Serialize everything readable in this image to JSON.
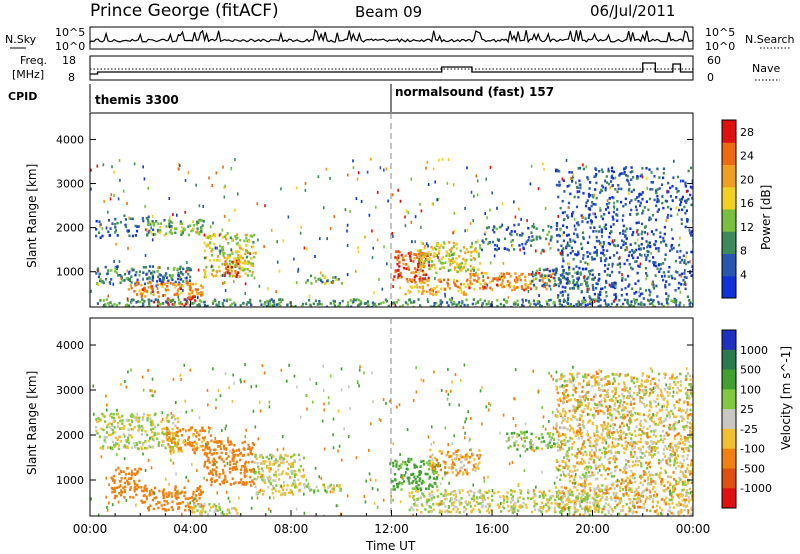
{
  "header": {
    "station": "Prince George (fitACF)",
    "beam": "Beam 09",
    "date": "06/Jul/2011"
  },
  "top_panels": {
    "nsky_label": "N.Sky",
    "nsearch_label": "N.Search",
    "freq_label_1": "Freq.",
    "freq_label_2": "[MHz]",
    "nave_label": "Nave",
    "cpid_label": "CPID",
    "noise_ticks_left": [
      "10^5",
      "10^0"
    ],
    "noise_ticks_right": [
      "10^5",
      "10^0"
    ],
    "freq_ticks": [
      "18",
      "8"
    ],
    "nave_ticks": [
      "60",
      "0"
    ]
  },
  "cpid_segments": [
    {
      "label": "themis 3300",
      "start_hour": 0
    },
    {
      "label": "normalsound (fast) 157",
      "start_hour": 12
    }
  ],
  "colors": {
    "power_scale": [
      "#1030d8",
      "#2a56b0",
      "#3c8a5a",
      "#7ac040",
      "#f0d020",
      "#f0a020",
      "#ec6a10",
      "#e01010"
    ],
    "velocity_scale": [
      "#2030c0",
      "#2a7a50",
      "#40a030",
      "#80c840",
      "#c8c8c0",
      "#f0c030",
      "#f08010",
      "#e05010",
      "#e01010"
    ]
  },
  "chart_data": [
    {
      "type": "heatmap",
      "name": "power",
      "xlabel": "",
      "ylabel": "Slant Range [km]",
      "xlim_hours": [
        0,
        24
      ],
      "ylim": [
        200,
        4600
      ],
      "yticks": [
        "1000",
        "2000",
        "3000",
        "4000"
      ],
      "colorbar_label": "Power [dB]",
      "colorbar_ticks": [
        "4",
        "8",
        "12",
        "16",
        "20",
        "24",
        "28"
      ],
      "colorbar_range": [
        0,
        30
      ],
      "regions": [
        {
          "h0": 0.2,
          "h1": 2.5,
          "r0": 1800,
          "r1": 2300,
          "val": 6
        },
        {
          "h0": 2.2,
          "h1": 4.5,
          "r0": 1850,
          "r1": 2200,
          "val": 12
        },
        {
          "h0": 4.5,
          "h1": 6.5,
          "r0": 900,
          "r1": 1900,
          "val": 16
        },
        {
          "h0": 5.3,
          "h1": 5.9,
          "r0": 900,
          "r1": 1300,
          "val": 26
        },
        {
          "h0": 0.2,
          "h1": 4.0,
          "r0": 750,
          "r1": 1150,
          "val": 8
        },
        {
          "h0": 1.5,
          "h1": 4.5,
          "r0": 450,
          "r1": 800,
          "val": 22
        },
        {
          "h0": 2.5,
          "h1": 4.2,
          "r0": 250,
          "r1": 450,
          "val": 28
        },
        {
          "h0": 8.5,
          "h1": 10.0,
          "r0": 750,
          "r1": 950,
          "val": 12
        },
        {
          "h0": 12.0,
          "h1": 13.5,
          "r0": 800,
          "r1": 1500,
          "val": 26
        },
        {
          "h0": 13.0,
          "h1": 15.5,
          "r0": 1000,
          "r1": 1700,
          "val": 16
        },
        {
          "h0": 12.5,
          "h1": 15.0,
          "r0": 500,
          "r1": 850,
          "val": 20
        },
        {
          "h0": 15.0,
          "h1": 18.5,
          "r0": 600,
          "r1": 1000,
          "val": 22
        },
        {
          "h0": 17.5,
          "h1": 20.0,
          "r0": 700,
          "r1": 1100,
          "val": 8
        },
        {
          "h0": 15.5,
          "h1": 18.5,
          "r0": 1500,
          "r1": 2100,
          "val": 7
        },
        {
          "h0": 18.5,
          "h1": 24.0,
          "r0": 250,
          "r1": 3400,
          "val": 5
        },
        {
          "h0": 0.0,
          "h1": 24.0,
          "r0": 200,
          "r1": 400,
          "val": 10
        }
      ]
    },
    {
      "type": "heatmap",
      "name": "velocity",
      "xlabel": "Time UT",
      "ylabel": "Slant Range [km]",
      "xlim_hours": [
        0,
        24
      ],
      "ylim": [
        200,
        4600
      ],
      "xticks": [
        "00:00",
        "04:00",
        "08:00",
        "12:00",
        "16:00",
        "20:00",
        "00:00"
      ],
      "yticks": [
        "1000",
        "2000",
        "3000",
        "4000"
      ],
      "colorbar_label": "Velocity [m s^-1]",
      "colorbar_ticks": [
        "1000",
        "500",
        "100",
        "25",
        "-25",
        "-100",
        "-500",
        "-1000"
      ],
      "regions": [
        {
          "h0": 0.2,
          "h1": 3.5,
          "r0": 1700,
          "r1": 2500,
          "val": 0
        },
        {
          "h0": 3.0,
          "h1": 4.8,
          "r0": 1600,
          "r1": 2200,
          "val": -150
        },
        {
          "h0": 4.5,
          "h1": 6.5,
          "r0": 900,
          "r1": 1900,
          "val": -300
        },
        {
          "h0": 0.8,
          "h1": 2.0,
          "r0": 600,
          "r1": 1300,
          "val": -400
        },
        {
          "h0": 2.0,
          "h1": 4.5,
          "r0": 350,
          "r1": 900,
          "val": -300
        },
        {
          "h0": 4.0,
          "h1": 6.0,
          "r0": 250,
          "r1": 500,
          "val": 0
        },
        {
          "h0": 6.5,
          "h1": 8.5,
          "r0": 700,
          "r1": 1600,
          "val": 0
        },
        {
          "h0": 8.5,
          "h1": 10.0,
          "r0": 750,
          "r1": 950,
          "val": 0
        },
        {
          "h0": 12.0,
          "h1": 13.8,
          "r0": 800,
          "r1": 1500,
          "val": 150
        },
        {
          "h0": 13.5,
          "h1": 15.5,
          "r0": 1100,
          "r1": 1700,
          "val": -80
        },
        {
          "h0": 12.5,
          "h1": 20.5,
          "r0": 300,
          "r1": 800,
          "val": 0
        },
        {
          "h0": 16.5,
          "h1": 18.5,
          "r0": 1700,
          "r1": 2100,
          "val": 60
        },
        {
          "h0": 18.5,
          "h1": 24.0,
          "r0": 250,
          "r1": 3400,
          "val": -40
        }
      ]
    }
  ]
}
